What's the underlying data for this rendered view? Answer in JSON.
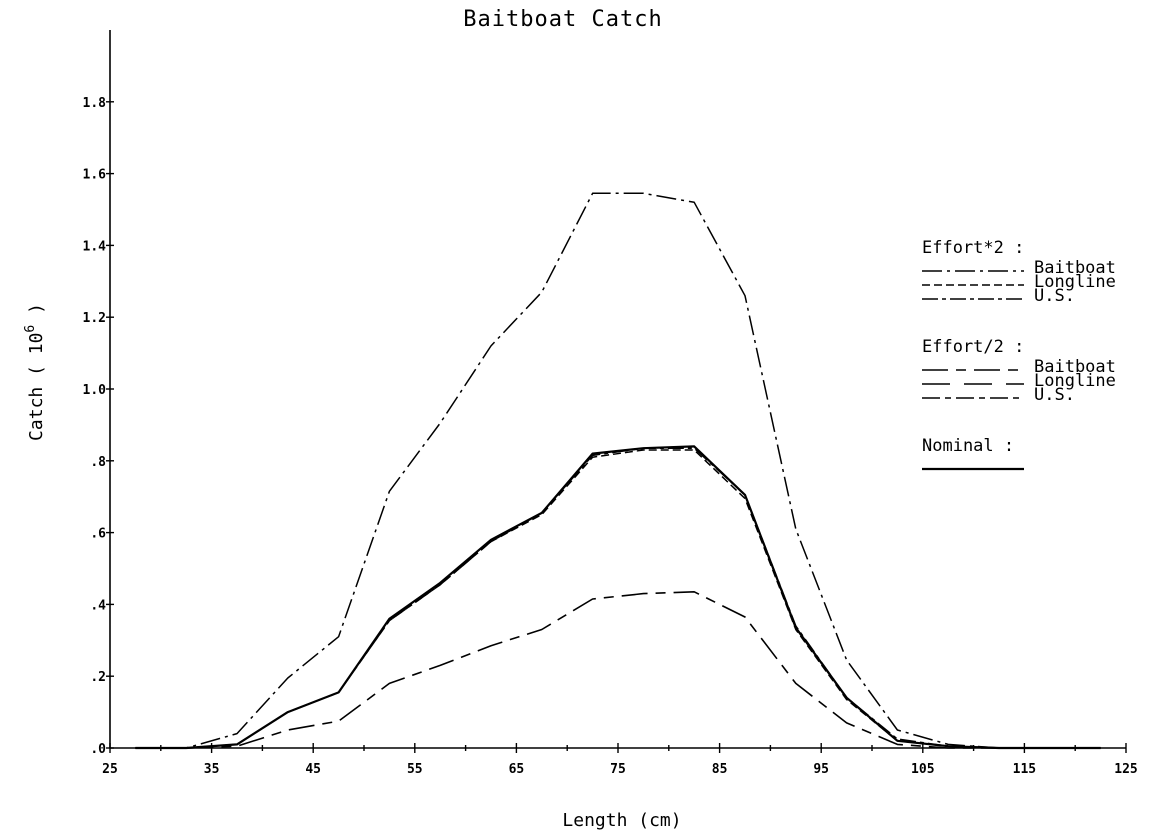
{
  "chart_data": {
    "type": "line",
    "title": "Baitboat Catch",
    "xlabel": "Length (cm)",
    "ylabel_main": "Catch ( 10",
    "ylabel_sup": "6",
    "ylabel_close": " )",
    "xlim": [
      25,
      125
    ],
    "ylim": [
      0,
      2.0
    ],
    "x_ticks": [
      25,
      35,
      45,
      55,
      65,
      75,
      85,
      95,
      105,
      115,
      125
    ],
    "x_tick_labels": [
      "25",
      "35",
      "45",
      "55",
      "65",
      "75",
      "85",
      "95",
      "105",
      "115",
      "125"
    ],
    "y_ticks": [
      0,
      0.2,
      0.4,
      0.6,
      0.8,
      1.0,
      1.2,
      1.4,
      1.6,
      1.8
    ],
    "y_tick_labels": [
      ".0",
      ".2",
      ".4",
      ".6",
      ".8",
      "1.0",
      "1.2",
      "1.4",
      "1.6",
      "1.8"
    ],
    "x": [
      27.5,
      32.5,
      37.5,
      42.5,
      47.5,
      52.5,
      57.5,
      62.5,
      67.5,
      72.5,
      77.5,
      82.5,
      87.5,
      92.5,
      97.5,
      102.5,
      107.5,
      112.5,
      117.5,
      122.5
    ],
    "legend_groups": [
      {
        "heading": "Effort*2 :",
        "entries": [
          "Baitboat",
          "Longline",
          "U.S."
        ]
      },
      {
        "heading": "Effort/2 :",
        "entries": [
          "Baitboat",
          "Longline",
          "U.S."
        ]
      },
      {
        "heading": "Nominal :",
        "entries": [
          ""
        ]
      }
    ],
    "series": [
      {
        "dash": "20,5,3,5",
        "width": 1.5,
        "values": [
          0,
          0,
          0.04,
          0.195,
          0.31,
          0.715,
          0.905,
          1.12,
          1.27,
          1.545,
          1.545,
          1.52,
          1.26,
          0.61,
          0.245,
          0.05,
          0.01,
          0,
          0,
          0
        ]
      },
      {
        "dash": "8,4",
        "width": 1.5,
        "values": [
          0,
          0,
          0.01,
          0.1,
          0.155,
          0.355,
          0.455,
          0.575,
          0.65,
          0.81,
          0.83,
          0.83,
          0.695,
          0.33,
          0.135,
          0.02,
          0.005,
          0,
          0,
          0
        ]
      },
      {
        "dash": "16,4,4,4",
        "width": 1.5,
        "values": [
          0,
          0,
          0.01,
          0.1,
          0.155,
          0.355,
          0.455,
          0.575,
          0.655,
          0.815,
          0.835,
          0.835,
          0.705,
          0.34,
          0.14,
          0.025,
          0.005,
          0,
          0,
          0
        ]
      },
      {
        "dash": "26,8,10,8",
        "width": 1.6,
        "values": [
          0,
          0,
          0.005,
          0.05,
          0.075,
          0.18,
          0.23,
          0.285,
          0.33,
          0.415,
          0.43,
          0.435,
          0.365,
          0.18,
          0.07,
          0.01,
          0,
          0,
          0,
          0
        ]
      },
      {
        "dash": "28,14",
        "width": 1.5,
        "values": [
          0,
          0,
          0.01,
          0.1,
          0.155,
          0.36,
          0.46,
          0.58,
          0.655,
          0.82,
          0.835,
          0.84,
          0.705,
          0.335,
          0.14,
          0.02,
          0.005,
          0,
          0,
          0
        ]
      },
      {
        "dash": "18,5,6,5",
        "width": 1.5,
        "values": [
          0,
          0,
          0.01,
          0.1,
          0.155,
          0.36,
          0.46,
          0.58,
          0.655,
          0.82,
          0.835,
          0.84,
          0.705,
          0.335,
          0.14,
          0.02,
          0.005,
          0,
          0,
          0
        ]
      },
      {
        "dash": "",
        "width": 2.2,
        "values": [
          0,
          0,
          0.01,
          0.1,
          0.155,
          0.36,
          0.46,
          0.58,
          0.655,
          0.82,
          0.835,
          0.84,
          0.705,
          0.335,
          0.14,
          0.02,
          0.005,
          0,
          0,
          0
        ]
      }
    ]
  }
}
